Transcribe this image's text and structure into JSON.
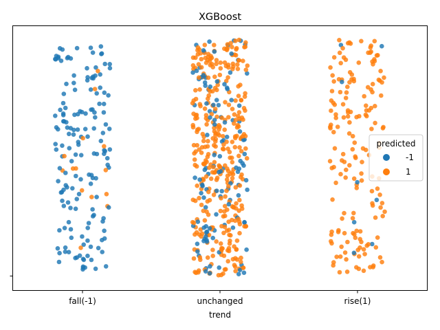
{
  "chart_data": {
    "type": "scatter",
    "title": "XGBoost",
    "xlabel": "trend",
    "ylabel": "",
    "categories": [
      "fall(-1)",
      "unchanged",
      "rise(1)"
    ],
    "y_tick_labels": [
      ""
    ],
    "y_range": [
      0,
      1
    ],
    "grid": false,
    "legend": {
      "title": "predicted",
      "placement": "right",
      "entries": [
        {
          "label": "-1",
          "color": "#1f77b4"
        },
        {
          "label": "1",
          "color": "#ff7f0e"
        }
      ]
    },
    "series": [
      {
        "name": "-1",
        "color": "#1f77b4",
        "counts_per_category": [
          160,
          120,
          8
        ]
      },
      {
        "name": "1",
        "color": "#ff7f0e",
        "counts_per_category": [
          14,
          360,
          170
        ]
      }
    ],
    "jitter_width": 0.2,
    "y_value_range_of_points": [
      0,
      1
    ]
  }
}
